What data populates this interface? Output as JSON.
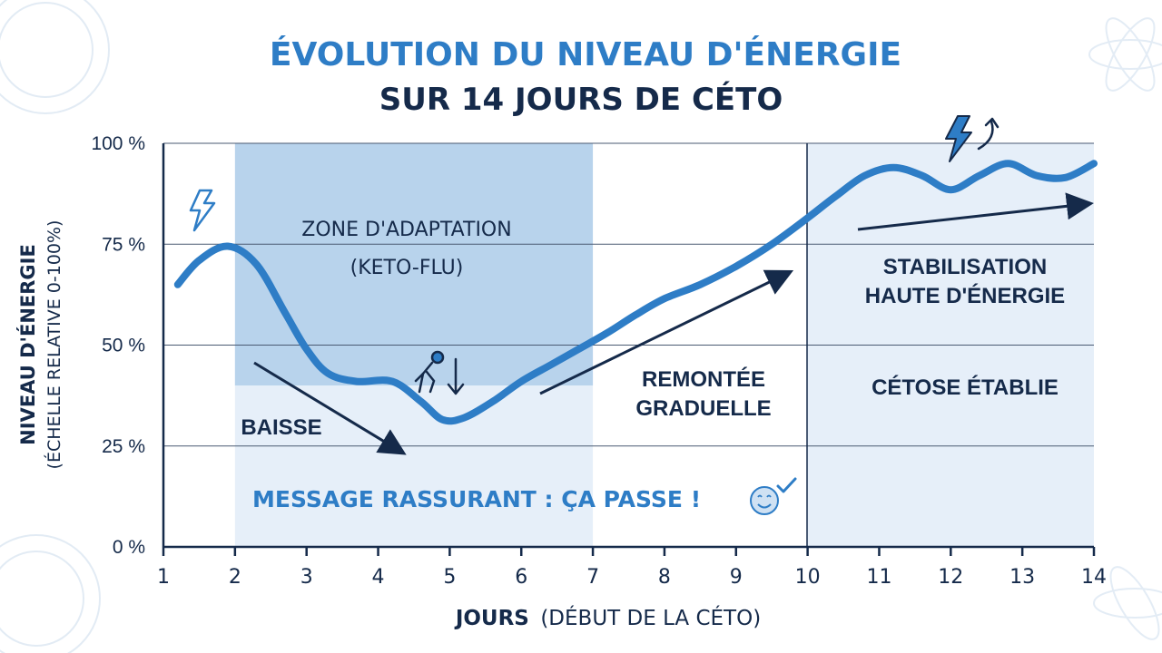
{
  "chart_data": {
    "type": "line",
    "title": "ÉVOLUTION DU NIVEAU D'ÉNERGIE",
    "subtitle": "SUR 14 JOURS DE CÉTO",
    "ylabel": "NIVEAU D'ÉNERGIE",
    "ylabel_sub": "(ÉCHELLE RELATIVE 0-100%)",
    "xlabel": "JOURS",
    "xlabel_sub": "(DÉBUT DE LA CÉTO)",
    "xlim": [
      1,
      14
    ],
    "ylim": [
      0,
      100
    ],
    "x_ticks": [
      1,
      2,
      3,
      4,
      5,
      6,
      7,
      8,
      9,
      10,
      11,
      12,
      13,
      14
    ],
    "y_ticks": [
      "0 %",
      "25 %",
      "50 %",
      "75 %",
      "100 %"
    ],
    "y_tick_values": [
      0,
      25,
      50,
      75,
      100
    ],
    "grid": true,
    "series": [
      {
        "name": "",
        "color": "#2e7dc6",
        "x": [
          1.2,
          1.5,
          1.9,
          2.3,
          2.7,
          3.0,
          3.3,
          3.7,
          4.2,
          4.6,
          4.9,
          5.2,
          5.6,
          6.0,
          6.4,
          6.8,
          7.2,
          7.6,
          8.0,
          8.5,
          9.0,
          9.5,
          10.0,
          10.4,
          10.8,
          11.2,
          11.6,
          12.0,
          12.4,
          12.8,
          13.2,
          13.6,
          14.0
        ],
        "y": [
          65,
          71,
          74.5,
          70,
          58,
          49,
          43,
          41,
          41,
          36,
          31.5,
          32,
          36,
          41,
          45,
          49,
          53,
          57.5,
          61.5,
          65,
          69.5,
          75,
          81.5,
          87,
          92,
          94,
          92,
          88.5,
          92,
          95,
          92,
          91.5,
          95
        ]
      }
    ],
    "zones": [
      {
        "label": "ZONE D'ADAPTATION",
        "sublabel": "(KETO-FLU)",
        "x_start": 2,
        "x_end": 7,
        "color": "#b8d3ec"
      },
      {
        "label": "",
        "sublabel": "",
        "x_start": 2,
        "x_end": 7,
        "color": "#e6eff9"
      },
      {
        "label": "",
        "sublabel": "",
        "x_start": 10,
        "x_end": 14,
        "color": "#e6eff9"
      }
    ],
    "annotations": {
      "baisse": "BAISSE",
      "remontee_1": "REMONTÉE",
      "remontee_2": "GRADUELLE",
      "stabilisation_1": "STABILISATION",
      "stabilisation_2": "HAUTE D'ÉNERGIE",
      "cetose": "CÉTOSE ÉTABLIE",
      "message": "MESSAGE RASSURANT : ÇA PASSE !"
    },
    "colors": {
      "accent": "#2e7dc6",
      "dark": "#152a4a",
      "zone_dark": "#b8d3ec",
      "zone_light": "#e6eff9"
    }
  }
}
